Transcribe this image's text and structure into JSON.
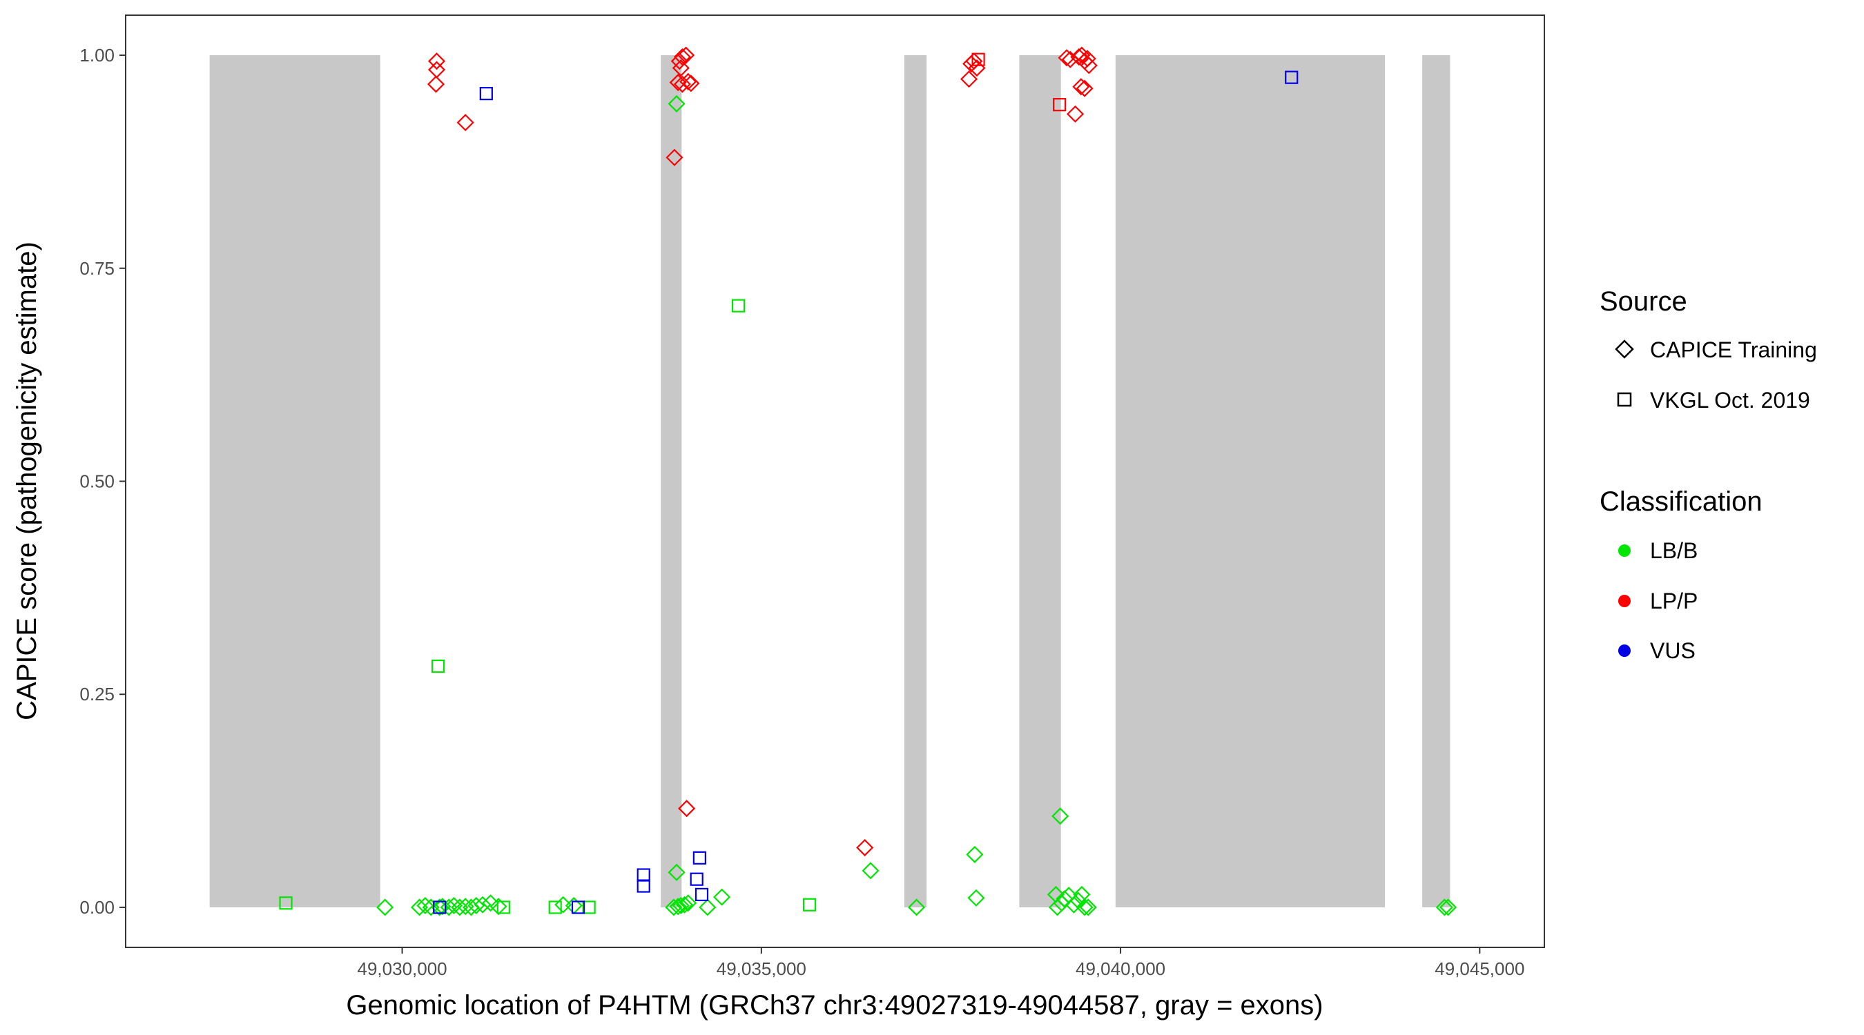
{
  "chart_data": {
    "type": "scatter",
    "xlabel": "Genomic location of P4HTM (GRCh37 chr3:49027319-49044587, gray = exons)",
    "ylabel": "CAPICE score (pathogenicity estimate)",
    "xlim": [
      49026150,
      49045900
    ],
    "ylim": [
      -0.047,
      1.047
    ],
    "x_ticks": [
      49030000,
      49035000,
      49040000,
      49045000
    ],
    "x_tick_labels": [
      "49,030,000",
      "49,035,000",
      "49,040,000",
      "49,045,000"
    ],
    "y_ticks": [
      0.0,
      0.25,
      0.5,
      0.75,
      1.0
    ],
    "y_tick_labels": [
      "0.00",
      "0.25",
      "0.50",
      "0.75",
      "1.00"
    ],
    "grid": false,
    "legend_placement": "right",
    "exons": [
      [
        49027319,
        49029694
      ],
      [
        49033600,
        49033890
      ],
      [
        49036990,
        49037300
      ],
      [
        49038590,
        49039170
      ],
      [
        49039930,
        49043680
      ],
      [
        49044200,
        49044587
      ]
    ],
    "exon_color": "#c8c8c8",
    "legend": {
      "source_title": "Source",
      "source_items": [
        {
          "label": "CAPICE Training",
          "shape": "diamond"
        },
        {
          "label": "VKGL Oct. 2019",
          "shape": "square"
        }
      ],
      "class_title": "Classification",
      "class_items": [
        {
          "label": "LB/B",
          "color": "#00e600"
        },
        {
          "label": "LP/P",
          "color": "#ff0000"
        },
        {
          "label": "VUS",
          "color": "#0000e6"
        }
      ]
    },
    "series": [
      {
        "name": "LB/B",
        "color": "#00e600",
        "points": [
          {
            "x": 49028380,
            "y": 0.005,
            "shape": "square"
          },
          {
            "x": 49029760,
            "y": 0.0,
            "shape": "diamond"
          },
          {
            "x": 49030240,
            "y": 0.0,
            "shape": "diamond"
          },
          {
            "x": 49030320,
            "y": 0.002,
            "shape": "diamond"
          },
          {
            "x": 49030400,
            "y": 0.0,
            "shape": "diamond"
          },
          {
            "x": 49030500,
            "y": 0.283,
            "shape": "square"
          },
          {
            "x": 49030520,
            "y": 0.0,
            "shape": "diamond"
          },
          {
            "x": 49030560,
            "y": 0.001,
            "shape": "diamond"
          },
          {
            "x": 49030650,
            "y": 0.0,
            "shape": "diamond"
          },
          {
            "x": 49030720,
            "y": 0.002,
            "shape": "diamond"
          },
          {
            "x": 49030800,
            "y": 0.0,
            "shape": "diamond"
          },
          {
            "x": 49030880,
            "y": 0.001,
            "shape": "diamond"
          },
          {
            "x": 49030960,
            "y": 0.0,
            "shape": "diamond"
          },
          {
            "x": 49031030,
            "y": 0.002,
            "shape": "diamond"
          },
          {
            "x": 49031120,
            "y": 0.003,
            "shape": "diamond"
          },
          {
            "x": 49031230,
            "y": 0.005,
            "shape": "diamond"
          },
          {
            "x": 49031340,
            "y": 0.001,
            "shape": "diamond"
          },
          {
            "x": 49031410,
            "y": 0.0,
            "shape": "square"
          },
          {
            "x": 49032130,
            "y": 0.0,
            "shape": "square"
          },
          {
            "x": 49032240,
            "y": 0.003,
            "shape": "diamond"
          },
          {
            "x": 49032390,
            "y": 0.002,
            "shape": "diamond"
          },
          {
            "x": 49032600,
            "y": 0.0,
            "shape": "square"
          },
          {
            "x": 49033820,
            "y": 0.943,
            "shape": "diamond"
          },
          {
            "x": 49033820,
            "y": 0.041,
            "shape": "diamond"
          },
          {
            "x": 49033780,
            "y": 0.0,
            "shape": "diamond"
          },
          {
            "x": 49033840,
            "y": 0.001,
            "shape": "diamond"
          },
          {
            "x": 49033880,
            "y": 0.002,
            "shape": "diamond"
          },
          {
            "x": 49033930,
            "y": 0.003,
            "shape": "diamond"
          },
          {
            "x": 49033980,
            "y": 0.005,
            "shape": "diamond"
          },
          {
            "x": 49034250,
            "y": 0.0,
            "shape": "diamond"
          },
          {
            "x": 49034450,
            "y": 0.012,
            "shape": "diamond"
          },
          {
            "x": 49034680,
            "y": 0.706,
            "shape": "square"
          },
          {
            "x": 49035670,
            "y": 0.003,
            "shape": "square"
          },
          {
            "x": 49036520,
            "y": 0.043,
            "shape": "diamond"
          },
          {
            "x": 49037160,
            "y": 0.0,
            "shape": "diamond"
          },
          {
            "x": 49037970,
            "y": 0.062,
            "shape": "diamond"
          },
          {
            "x": 49037990,
            "y": 0.011,
            "shape": "diamond"
          },
          {
            "x": 49039160,
            "y": 0.107,
            "shape": "diamond"
          },
          {
            "x": 49039100,
            "y": 0.015,
            "shape": "diamond"
          },
          {
            "x": 49039120,
            "y": 0.0,
            "shape": "diamond"
          },
          {
            "x": 49039180,
            "y": 0.005,
            "shape": "diamond"
          },
          {
            "x": 49039220,
            "y": 0.01,
            "shape": "diamond"
          },
          {
            "x": 49039280,
            "y": 0.014,
            "shape": "diamond"
          },
          {
            "x": 49039350,
            "y": 0.003,
            "shape": "diamond"
          },
          {
            "x": 49039410,
            "y": 0.008,
            "shape": "diamond"
          },
          {
            "x": 49039460,
            "y": 0.015,
            "shape": "diamond"
          },
          {
            "x": 49039500,
            "y": 0.0,
            "shape": "diamond"
          },
          {
            "x": 49039550,
            "y": 0.0,
            "shape": "diamond"
          },
          {
            "x": 49044510,
            "y": 0.0,
            "shape": "diamond"
          },
          {
            "x": 49044560,
            "y": 0.0,
            "shape": "diamond"
          }
        ]
      },
      {
        "name": "LP/P",
        "color": "#ff0000",
        "points": [
          {
            "x": 49030480,
            "y": 0.993,
            "shape": "diamond"
          },
          {
            "x": 49030480,
            "y": 0.983,
            "shape": "diamond"
          },
          {
            "x": 49030470,
            "y": 0.966,
            "shape": "diamond"
          },
          {
            "x": 49030880,
            "y": 0.921,
            "shape": "diamond"
          },
          {
            "x": 49033790,
            "y": 0.88,
            "shape": "diamond"
          },
          {
            "x": 49033860,
            "y": 0.993,
            "shape": "diamond"
          },
          {
            "x": 49033900,
            "y": 0.998,
            "shape": "diamond"
          },
          {
            "x": 49033950,
            "y": 1.0,
            "shape": "diamond"
          },
          {
            "x": 49033880,
            "y": 0.985,
            "shape": "diamond"
          },
          {
            "x": 49033840,
            "y": 0.968,
            "shape": "diamond"
          },
          {
            "x": 49033900,
            "y": 0.966,
            "shape": "diamond"
          },
          {
            "x": 49033980,
            "y": 0.969,
            "shape": "diamond"
          },
          {
            "x": 49034020,
            "y": 0.967,
            "shape": "diamond"
          },
          {
            "x": 49033960,
            "y": 0.116,
            "shape": "diamond"
          },
          {
            "x": 49036440,
            "y": 0.07,
            "shape": "diamond"
          },
          {
            "x": 49037890,
            "y": 0.972,
            "shape": "diamond"
          },
          {
            "x": 49037920,
            "y": 0.99,
            "shape": "diamond"
          },
          {
            "x": 49037960,
            "y": 0.993,
            "shape": "diamond"
          },
          {
            "x": 49038000,
            "y": 0.985,
            "shape": "diamond"
          },
          {
            "x": 49038020,
            "y": 0.995,
            "shape": "square"
          },
          {
            "x": 49039150,
            "y": 0.942,
            "shape": "square"
          },
          {
            "x": 49039250,
            "y": 0.997,
            "shape": "diamond"
          },
          {
            "x": 49039300,
            "y": 0.995,
            "shape": "diamond"
          },
          {
            "x": 49039370,
            "y": 0.931,
            "shape": "diamond"
          },
          {
            "x": 49039420,
            "y": 0.998,
            "shape": "diamond"
          },
          {
            "x": 49039460,
            "y": 1.0,
            "shape": "diamond"
          },
          {
            "x": 49039500,
            "y": 0.993,
            "shape": "diamond"
          },
          {
            "x": 49039540,
            "y": 0.996,
            "shape": "diamond"
          },
          {
            "x": 49039450,
            "y": 0.963,
            "shape": "diamond"
          },
          {
            "x": 49039500,
            "y": 0.961,
            "shape": "diamond"
          },
          {
            "x": 49039560,
            "y": 0.988,
            "shape": "diamond"
          }
        ]
      },
      {
        "name": "VUS",
        "color": "#0000e6",
        "points": [
          {
            "x": 49031170,
            "y": 0.955,
            "shape": "square"
          },
          {
            "x": 49030520,
            "y": 0.0,
            "shape": "square"
          },
          {
            "x": 49032450,
            "y": 0.0,
            "shape": "square"
          },
          {
            "x": 49033360,
            "y": 0.038,
            "shape": "square"
          },
          {
            "x": 49033360,
            "y": 0.025,
            "shape": "square"
          },
          {
            "x": 49034140,
            "y": 0.058,
            "shape": "square"
          },
          {
            "x": 49034100,
            "y": 0.033,
            "shape": "square"
          },
          {
            "x": 49034170,
            "y": 0.015,
            "shape": "square"
          },
          {
            "x": 49042380,
            "y": 0.974,
            "shape": "square"
          }
        ]
      }
    ]
  }
}
